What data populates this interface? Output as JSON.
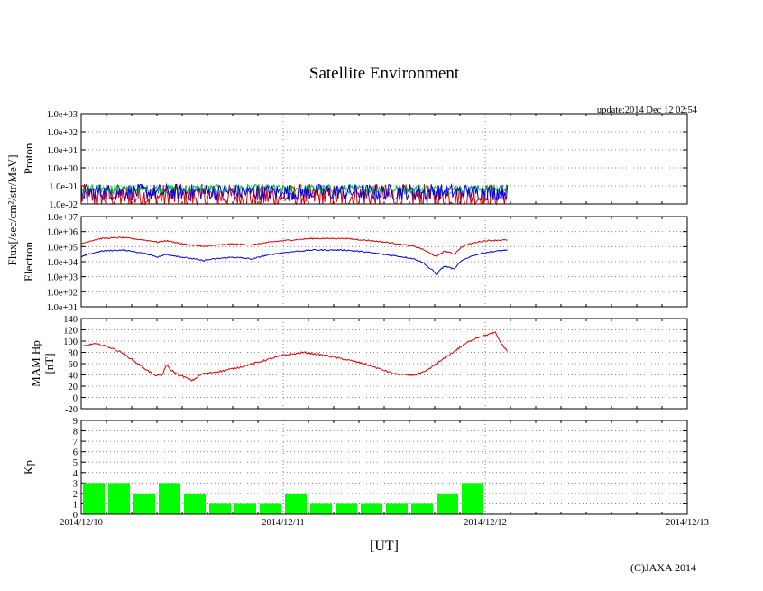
{
  "title": "Satellite Environment",
  "update": "update:2014 Dec 12 02:54",
  "copyright": "(C)JAXA 2014",
  "x_axis_label": "[UT]",
  "flux_label": "Flux[/sec/cm²/str/MeV]",
  "colors": {
    "red": "#dd0000",
    "blue": "#0000dd",
    "green": "#00bb44",
    "kp_bar": "#00ff00",
    "grid": "#888888"
  },
  "chart_data": [
    {
      "type": "line",
      "name": "proton",
      "ylabel": "Proton",
      "yscale": "log",
      "ylim": [
        0.01,
        1000
      ],
      "ytick_labels": [
        "1.0e-02",
        "1.0e-01",
        "1.0e+00",
        "1.0e+01",
        "1.0e+02",
        "1.0e+03"
      ],
      "series": [
        {
          "name": "proton-ch1",
          "color": "red",
          "level": 0.03,
          "spread": 0.7
        },
        {
          "name": "proton-ch2",
          "color": "green",
          "level": 0.07,
          "spread": 0.25
        },
        {
          "name": "proton-ch3",
          "color": "blue",
          "level": 0.05,
          "spread": 0.45
        }
      ],
      "x_end_days": 2.11
    },
    {
      "type": "line",
      "name": "electron",
      "ylabel": "Electron",
      "yscale": "log",
      "ylim": [
        10,
        10000000
      ],
      "ytick_labels": [
        "1.0e+01",
        "1.0e+02",
        "1.0e+03",
        "1.0e+04",
        "1.0e+05",
        "1.0e+06",
        "1.0e+07"
      ],
      "series": [
        {
          "name": "electron-low",
          "color": "red",
          "x": [
            0,
            0.1,
            0.2,
            0.38,
            0.42,
            0.5,
            0.6,
            0.75,
            0.85,
            1.0,
            1.15,
            1.3,
            1.5,
            1.65,
            1.72,
            1.76,
            1.8,
            1.85,
            1.9,
            2.0,
            2.11
          ],
          "y": [
            150000,
            350000,
            400000,
            200000,
            250000,
            150000,
            100000,
            150000,
            130000,
            250000,
            350000,
            350000,
            200000,
            100000,
            40000,
            20000,
            50000,
            30000,
            120000,
            250000,
            280000
          ]
        },
        {
          "name": "electron-high",
          "color": "blue",
          "x": [
            0,
            0.1,
            0.2,
            0.38,
            0.42,
            0.5,
            0.6,
            0.75,
            0.85,
            1.0,
            1.15,
            1.3,
            1.5,
            1.65,
            1.72,
            1.76,
            1.8,
            1.85,
            1.9,
            2.0,
            2.11
          ],
          "y": [
            20000,
            50000,
            60000,
            20000,
            30000,
            20000,
            12000,
            20000,
            15000,
            40000,
            60000,
            60000,
            30000,
            15000,
            4000,
            1200,
            5000,
            3000,
            15000,
            40000,
            60000
          ]
        }
      ],
      "x_end_days": 2.11
    },
    {
      "type": "line",
      "name": "mam-hp",
      "ylabel": "MAM Hp",
      "ylabel2": "[nT]",
      "ylim": [
        -20,
        140
      ],
      "ytick_labels": [
        "-20",
        "0",
        "20",
        "40",
        "60",
        "80",
        "100",
        "120",
        "140"
      ],
      "series": [
        {
          "name": "hp",
          "color": "red",
          "x": [
            0,
            0.06,
            0.12,
            0.2,
            0.28,
            0.36,
            0.4,
            0.42,
            0.44,
            0.48,
            0.52,
            0.55,
            0.6,
            0.7,
            0.8,
            0.9,
            1.0,
            1.05,
            1.1,
            1.2,
            1.3,
            1.4,
            1.5,
            1.55,
            1.6,
            1.65,
            1.7,
            1.8,
            1.9,
            1.95,
            2.0,
            2.05,
            2.08,
            2.11
          ],
          "y": [
            90,
            95,
            92,
            80,
            60,
            40,
            38,
            58,
            50,
            40,
            35,
            30,
            42,
            47,
            55,
            65,
            75,
            77,
            80,
            75,
            68,
            60,
            48,
            42,
            40,
            40,
            45,
            70,
            95,
            105,
            110,
            115,
            95,
            82
          ]
        }
      ],
      "x_end_days": 2.11
    },
    {
      "type": "bar",
      "name": "kp",
      "ylabel": "Kp",
      "ylim": [
        0,
        9
      ],
      "ytick_labels": [
        "0",
        "1",
        "2",
        "3",
        "4",
        "5",
        "6",
        "7",
        "8",
        "9"
      ],
      "bar_width_days": 0.125,
      "values": [
        3,
        3,
        2,
        3,
        2,
        1,
        1,
        1,
        2,
        1,
        1,
        1,
        1,
        1,
        2,
        3
      ]
    }
  ],
  "x_tick_labels": [
    "2014/12/10",
    "2014/12/11",
    "2014/12/12",
    "2014/12/13"
  ]
}
